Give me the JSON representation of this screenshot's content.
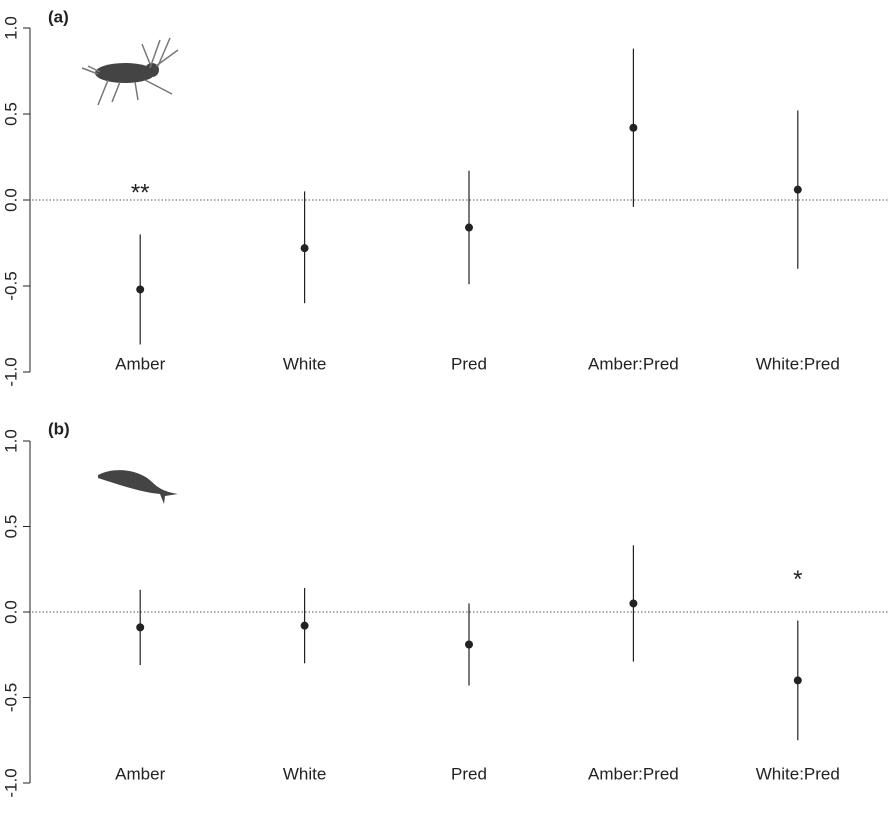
{
  "chart_data": [
    {
      "type": "errorbar",
      "title": "(a)",
      "categories": [
        "Amber",
        "White",
        "Pred",
        "Amber:Pred",
        "White:Pred"
      ],
      "values": [
        -0.52,
        -0.28,
        -0.16,
        0.42,
        0.06
      ],
      "lower": [
        -0.84,
        -0.6,
        -0.49,
        -0.04,
        -0.4
      ],
      "upper": [
        -0.2,
        0.05,
        0.17,
        0.88,
        0.52
      ],
      "color": "#222222",
      "ylim": [
        -1.0,
        1.0
      ],
      "yticks": [
        {
          "value": -1,
          "label": "-1.0"
        },
        {
          "value": -0.5,
          "label": "-0.5"
        },
        {
          "value": 0,
          "label": "0.0"
        },
        {
          "value": 0.5,
          "label": "0.5"
        },
        {
          "value": 1,
          "label": "1.0"
        }
      ],
      "reference_line": 0,
      "annotations": [
        {
          "text": "**",
          "category": "Amber"
        }
      ]
    },
    {
      "type": "errorbar",
      "title": "(b)",
      "categories": [
        "Amber",
        "White",
        "Pred",
        "Amber:Pred",
        "White:Pred"
      ],
      "values": [
        -0.09,
        -0.08,
        -0.19,
        0.05,
        -0.4
      ],
      "lower": [
        -0.31,
        -0.3,
        -0.43,
        -0.29,
        -0.75
      ],
      "upper": [
        0.13,
        0.14,
        0.05,
        0.39,
        -0.05
      ],
      "color": "#222222",
      "ylim": [
        -1.0,
        1.0
      ],
      "yticks": [
        {
          "value": -1,
          "label": "-1.0"
        },
        {
          "value": -0.5,
          "label": "-0.5"
        },
        {
          "value": 0,
          "label": "0.0"
        },
        {
          "value": 0.5,
          "label": "0.5"
        },
        {
          "value": 1,
          "label": "1.0"
        }
      ],
      "reference_line": 0,
      "annotations": [
        {
          "text": "*",
          "category": "White:Pred"
        }
      ]
    }
  ]
}
